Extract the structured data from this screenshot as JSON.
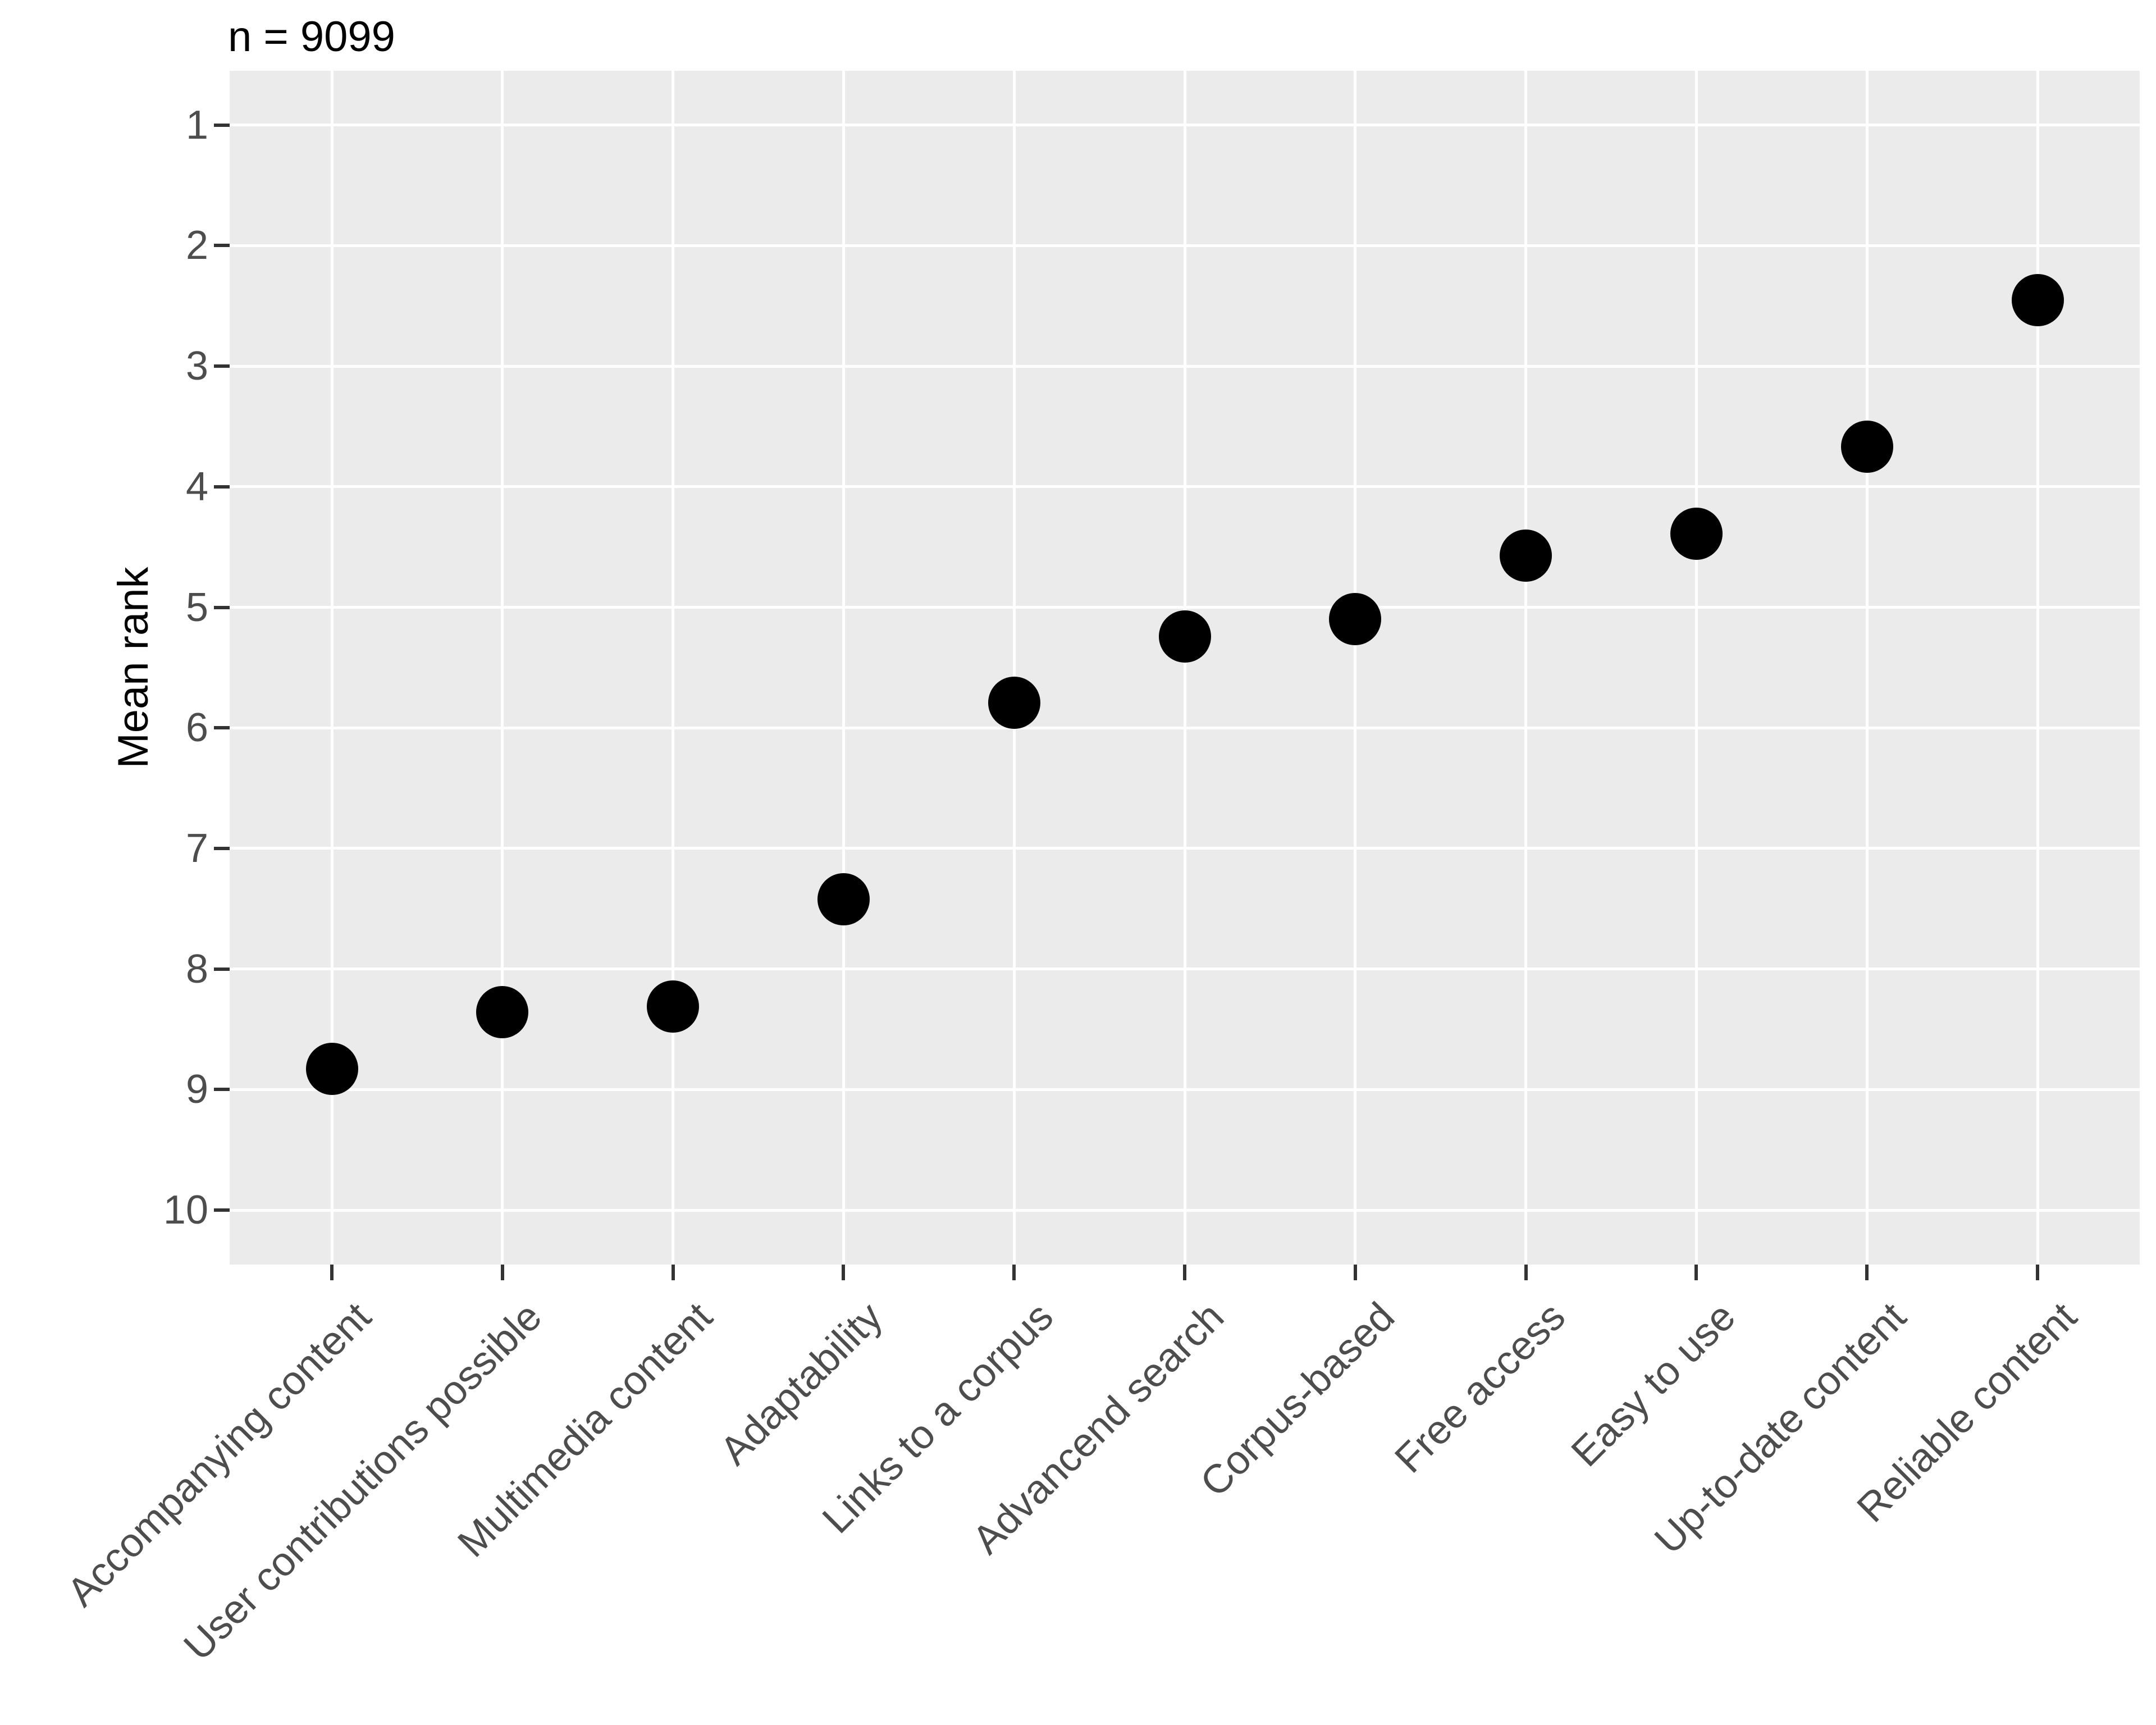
{
  "title": "n = 9099",
  "y_axis": {
    "label": "Mean rank",
    "ticks": [
      "1",
      "2",
      "3",
      "4",
      "5",
      "6",
      "7",
      "8",
      "9",
      "10"
    ]
  },
  "x_axis": {
    "label": ""
  },
  "chart_data": {
    "type": "scatter",
    "title": "n = 9099",
    "xlabel": "",
    "ylabel": "Mean rank",
    "categories": [
      "Accompanying content",
      "User contributions possible",
      "Multimedia content",
      "Adaptability",
      "Links to a corpus",
      "Advancend search",
      "Corpus-based",
      "Free access",
      "Easy to use",
      "Up-to-date content",
      "Reliable content"
    ],
    "values": [
      8.83,
      8.36,
      8.31,
      7.42,
      5.79,
      5.24,
      5.1,
      4.57,
      4.39,
      3.67,
      2.45
    ],
    "ylim": [
      1,
      10
    ],
    "y_axis_reversed": true,
    "y_tick_values": [
      1,
      2,
      3,
      4,
      5,
      6,
      7,
      8,
      9,
      10
    ],
    "grid": "major only, white on grey panel",
    "legend_position": "none",
    "point_color": "#000000",
    "panel_background": "#EBEBEB",
    "gridline_color": "#ffffff",
    "axis_text_color": "#4D4D4D",
    "tick_mark_color": "#333333"
  }
}
